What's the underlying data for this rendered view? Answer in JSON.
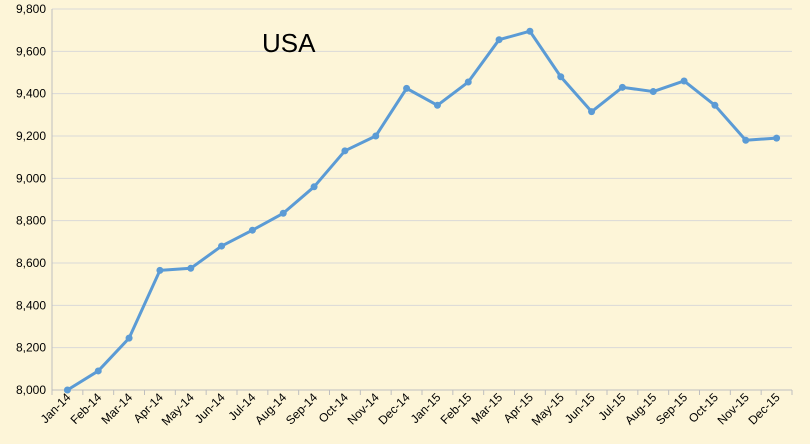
{
  "chart_data": {
    "type": "line",
    "title": "USA",
    "xlabel": "",
    "ylabel": "",
    "categories": [
      "Jan-14",
      "Feb-14",
      "Mar-14",
      "Apr-14",
      "May-14",
      "Jun-14",
      "Jul-14",
      "Aug-14",
      "Sep-14",
      "Oct-14",
      "Nov-14",
      "Dec-14",
      "Jan-15",
      "Feb-15",
      "Mar-15",
      "Apr-15",
      "May-15",
      "Jun-15",
      "Jul-15",
      "Aug-15",
      "Sep-15",
      "Oct-15",
      "Nov-15",
      "Dec-15"
    ],
    "series": [
      {
        "values": [
          8000,
          8090,
          8245,
          8565,
          8575,
          8680,
          8755,
          8835,
          8960,
          9130,
          9200,
          9425,
          9345,
          9455,
          9655,
          9695,
          9480,
          9315,
          9430,
          9410,
          9460,
          9345,
          9180,
          9190
        ]
      }
    ],
    "ylim": [
      8000,
      9800
    ],
    "yticks": [
      8000,
      8200,
      8400,
      8600,
      8800,
      9000,
      9200,
      9400,
      9600,
      9800
    ],
    "ytick_labels": [
      "8,000",
      "8,200",
      "8,400",
      "8,600",
      "8,800",
      "9,000",
      "9,200",
      "9,400",
      "9,600",
      "9,800"
    ],
    "grid": true,
    "legend": "none",
    "colors": {
      "background": "#fdf5d8",
      "grid": "#d9d9d9",
      "line": "#5b9bd5"
    }
  }
}
